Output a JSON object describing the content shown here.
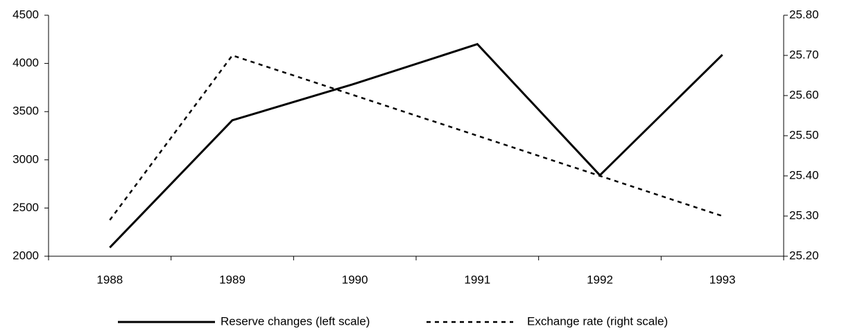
{
  "chart_data": {
    "type": "line",
    "categories": [
      "1988",
      "1989",
      "1990",
      "1991",
      "1992",
      "1993"
    ],
    "series": [
      {
        "name": "Reserve changes (left scale)",
        "color": "#000000",
        "dash": "solid",
        "values": [
          2090,
          3410,
          3790,
          4200,
          2840,
          4090
        ]
      },
      {
        "name": "Exchange rate (right scale)",
        "color": "#000000",
        "dash": "dashed",
        "axis": "y2",
        "values": [
          25.29,
          25.7,
          25.6,
          25.5,
          25.4,
          25.3
        ]
      }
    ],
    "ylim": [
      2000,
      4500
    ],
    "yticks": [
      2000,
      2500,
      3000,
      3500,
      4000,
      4500
    ],
    "y2lim": [
      25.2,
      25.8
    ],
    "y2ticks": [
      {
        "value": 25.2,
        "label": "25.20"
      },
      {
        "value": 25.3,
        "label": "25.30"
      },
      {
        "value": 25.4,
        "label": "25.40"
      },
      {
        "value": 25.5,
        "label": "25.50"
      },
      {
        "value": 25.6,
        "label": "25.60"
      },
      {
        "value": 25.7,
        "label": "25.70"
      },
      {
        "value": 25.8,
        "label": "25.80"
      }
    ],
    "grid": false,
    "legend": "bottom"
  }
}
